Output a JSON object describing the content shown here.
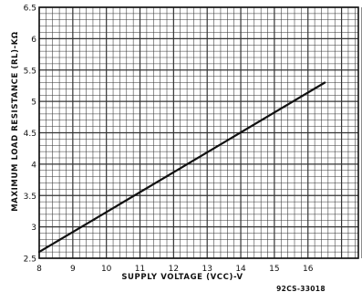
{
  "chart_data": {
    "type": "line",
    "title": "",
    "xlabel": "SUPPLY VOLTAGE (VCC)-V",
    "ylabel": "MAXIMUM LOAD RESISTANCE (RL)-KΩ",
    "xlim": [
      8,
      17.5
    ],
    "ylim": [
      2.5,
      6.5
    ],
    "x_ticks": [
      "8",
      "9",
      "10",
      "11",
      "12",
      "13",
      "14",
      "15",
      "16"
    ],
    "y_ticks": [
      "2.5",
      "3",
      "3.5",
      "4",
      "4.5",
      "5",
      "5.5",
      "6",
      "6.5"
    ],
    "grid": true,
    "series": [
      {
        "x": [
          8,
          16.5
        ],
        "y": [
          2.6,
          5.3
        ]
      }
    ],
    "figure_code": "92CS-33018",
    "colors": {
      "line": "#111111",
      "grid": "#333333",
      "background": "#ffffff"
    }
  }
}
